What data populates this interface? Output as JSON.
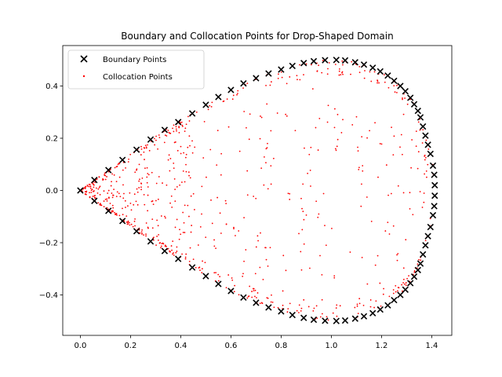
{
  "chart_data": {
    "type": "scatter",
    "title": "Boundary and Collocation Points for Drop-Shaped Domain",
    "xlabel": "",
    "ylabel": "",
    "xlim": [
      -0.07,
      1.48
    ],
    "ylim": [
      -0.555,
      0.555
    ],
    "xticks": [
      "0.0",
      "0.2",
      "0.4",
      "0.6",
      "0.8",
      "1.0",
      "1.2",
      "1.4"
    ],
    "yticks": [
      "−0.4",
      "−0.2",
      "0.0",
      "0.2",
      "0.4"
    ],
    "xtick_values": [
      0.0,
      0.2,
      0.4,
      0.6,
      0.8,
      1.0,
      1.2,
      1.4
    ],
    "ytick_values": [
      -0.4,
      -0.2,
      0.0,
      0.2,
      0.4
    ],
    "grid": false,
    "legend_position": "upper-left",
    "series": [
      {
        "name": "Boundary Points",
        "marker": "x",
        "color": "#000000",
        "points": [
          [
            0.0,
            0.0
          ],
          [
            0.056,
            0.04
          ],
          [
            0.112,
            0.078
          ],
          [
            0.168,
            0.117
          ],
          [
            0.224,
            0.156
          ],
          [
            0.28,
            0.195
          ],
          [
            0.336,
            0.232
          ],
          [
            0.39,
            0.262
          ],
          [
            0.446,
            0.295
          ],
          [
            0.5,
            0.328
          ],
          [
            0.55,
            0.358
          ],
          [
            0.6,
            0.385
          ],
          [
            0.65,
            0.41
          ],
          [
            0.7,
            0.43
          ],
          [
            0.75,
            0.448
          ],
          [
            0.8,
            0.463
          ],
          [
            0.845,
            0.477
          ],
          [
            0.89,
            0.488
          ],
          [
            0.93,
            0.495
          ],
          [
            0.975,
            0.499
          ],
          [
            1.02,
            0.5
          ],
          [
            1.055,
            0.498
          ],
          [
            1.095,
            0.491
          ],
          [
            1.13,
            0.482
          ],
          [
            1.165,
            0.47
          ],
          [
            1.195,
            0.456
          ],
          [
            1.225,
            0.44
          ],
          [
            1.25,
            0.42
          ],
          [
            1.275,
            0.4
          ],
          [
            1.295,
            0.38
          ],
          [
            1.315,
            0.355
          ],
          [
            1.33,
            0.33
          ],
          [
            1.345,
            0.305
          ],
          [
            1.355,
            0.28
          ],
          [
            1.365,
            0.245
          ],
          [
            1.375,
            0.21
          ],
          [
            1.385,
            0.175
          ],
          [
            1.395,
            0.14
          ],
          [
            1.405,
            0.095
          ],
          [
            1.41,
            0.06
          ],
          [
            1.412,
            0.02
          ],
          [
            1.412,
            -0.02
          ],
          [
            1.41,
            -0.06
          ],
          [
            1.405,
            -0.095
          ],
          [
            1.395,
            -0.14
          ],
          [
            1.385,
            -0.175
          ],
          [
            1.375,
            -0.21
          ],
          [
            1.365,
            -0.245
          ],
          [
            1.355,
            -0.28
          ],
          [
            1.345,
            -0.305
          ],
          [
            1.33,
            -0.33
          ],
          [
            1.315,
            -0.355
          ],
          [
            1.295,
            -0.38
          ],
          [
            1.275,
            -0.4
          ],
          [
            1.25,
            -0.42
          ],
          [
            1.225,
            -0.44
          ],
          [
            1.195,
            -0.456
          ],
          [
            1.165,
            -0.47
          ],
          [
            1.13,
            -0.482
          ],
          [
            1.095,
            -0.491
          ],
          [
            1.055,
            -0.498
          ],
          [
            1.02,
            -0.5
          ],
          [
            0.975,
            -0.499
          ],
          [
            0.93,
            -0.495
          ],
          [
            0.89,
            -0.488
          ],
          [
            0.845,
            -0.477
          ],
          [
            0.8,
            -0.463
          ],
          [
            0.75,
            -0.448
          ],
          [
            0.7,
            -0.43
          ],
          [
            0.65,
            -0.41
          ],
          [
            0.6,
            -0.385
          ],
          [
            0.55,
            -0.358
          ],
          [
            0.5,
            -0.328
          ],
          [
            0.446,
            -0.295
          ],
          [
            0.39,
            -0.262
          ],
          [
            0.336,
            -0.232
          ],
          [
            0.28,
            -0.195
          ],
          [
            0.224,
            -0.156
          ],
          [
            0.168,
            -0.117
          ],
          [
            0.112,
            -0.078
          ],
          [
            0.056,
            -0.04
          ]
        ]
      },
      {
        "name": "Collocation Points",
        "marker": "dot",
        "color": "#ff0000",
        "count": 800
      }
    ]
  }
}
